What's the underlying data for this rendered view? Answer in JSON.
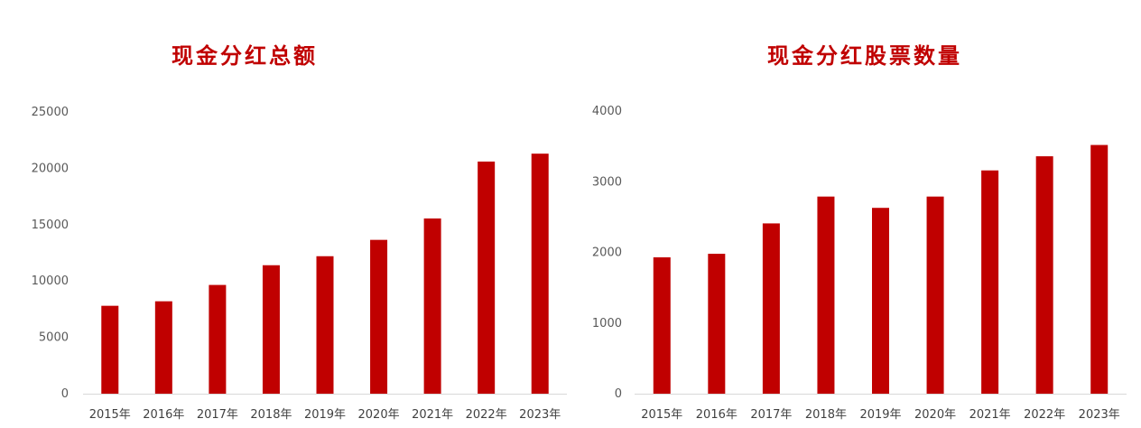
{
  "chart_data": [
    {
      "type": "bar",
      "title": "现金分红总额",
      "categories": [
        "2015年",
        "2016年",
        "2017年",
        "2018年",
        "2019年",
        "2020年",
        "2021年",
        "2022年",
        "2023年"
      ],
      "values": [
        7800,
        8200,
        9650,
        11400,
        12200,
        13650,
        15550,
        20600,
        21300
      ],
      "ylim": [
        0,
        25000
      ],
      "yticks": [
        0,
        5000,
        10000,
        15000,
        20000,
        25000
      ],
      "bar_color": "#c00000",
      "grid": false,
      "xlabel": "",
      "ylabel": ""
    },
    {
      "type": "bar",
      "title": "现金分红股票数量",
      "categories": [
        "2015年",
        "2016年",
        "2017年",
        "2018年",
        "2019年",
        "2020年",
        "2021年",
        "2022年",
        "2023年"
      ],
      "values": [
        1930,
        1980,
        2410,
        2790,
        2630,
        2790,
        3160,
        3360,
        3520
      ],
      "ylim": [
        0,
        4000
      ],
      "yticks": [
        0,
        1000,
        2000,
        3000,
        4000
      ],
      "bar_color": "#c00000",
      "grid": false,
      "xlabel": "",
      "ylabel": ""
    }
  ]
}
